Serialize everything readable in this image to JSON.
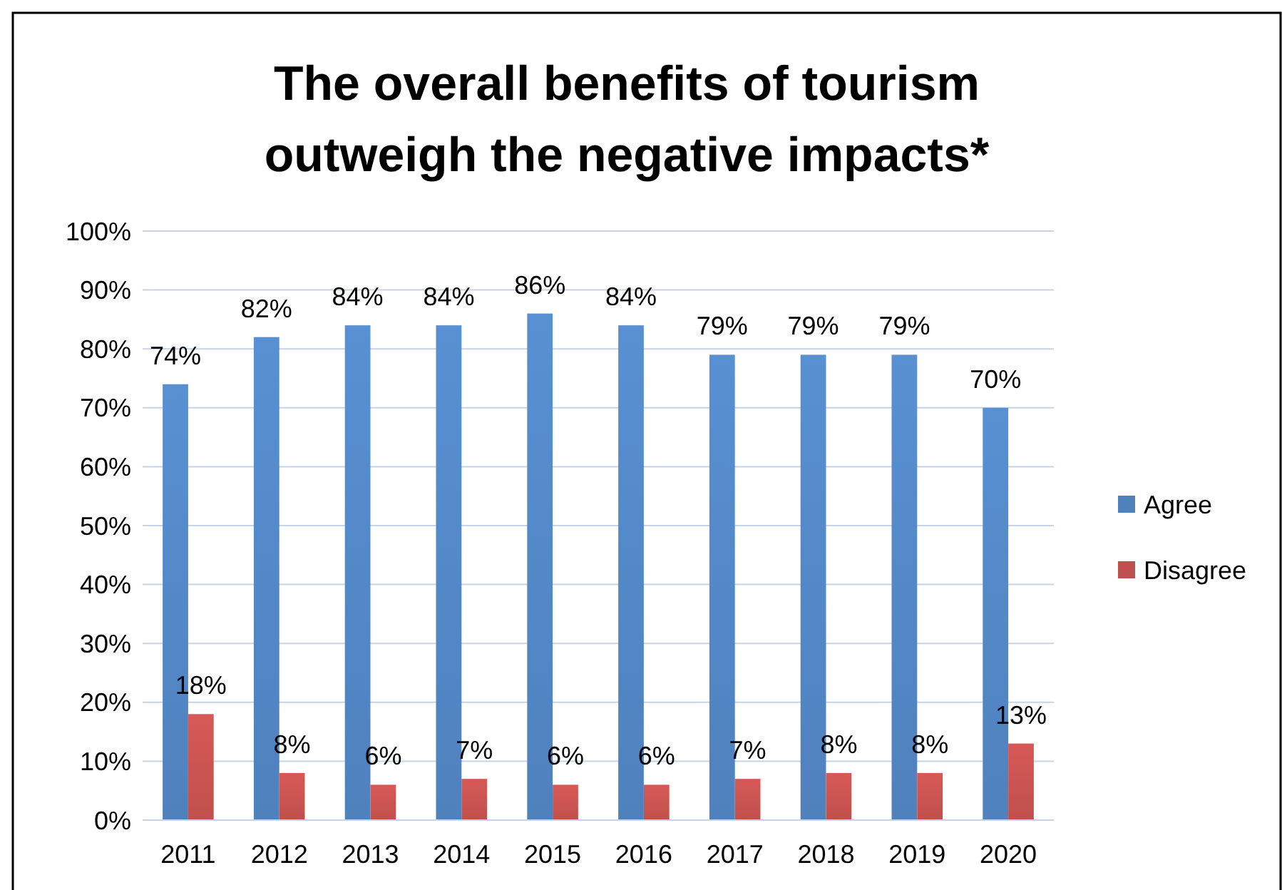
{
  "chart_data": {
    "type": "bar",
    "title": "The overall benefits of tourism outweigh the negative impacts*",
    "categories": [
      "2011",
      "2012",
      "2013",
      "2014",
      "2015",
      "2016",
      "2017",
      "2018",
      "2019",
      "2020"
    ],
    "series": [
      {
        "name": "Agree",
        "color": "#4f81bd",
        "values": [
          74,
          82,
          84,
          84,
          86,
          84,
          79,
          79,
          79,
          70
        ],
        "value_labels": [
          "74%",
          "82%",
          "84%",
          "84%",
          "86%",
          "84%",
          "79%",
          "79%",
          "79%",
          "70%"
        ]
      },
      {
        "name": "Disagree",
        "color": "#c0504d",
        "values": [
          18,
          8,
          6,
          7,
          6,
          6,
          7,
          8,
          8,
          13
        ],
        "value_labels": [
          "18%",
          "8%",
          "6%",
          "7%",
          "6%",
          "6%",
          "7%",
          "8%",
          "8%",
          "13%"
        ]
      }
    ],
    "ylim": [
      0,
      100
    ],
    "yticks": [
      {
        "value": 0,
        "label": "0%"
      },
      {
        "value": 10,
        "label": "10%"
      },
      {
        "value": 20,
        "label": "20%"
      },
      {
        "value": 30,
        "label": "30%"
      },
      {
        "value": 40,
        "label": "40%"
      },
      {
        "value": 50,
        "label": "50%"
      },
      {
        "value": 60,
        "label": "60%"
      },
      {
        "value": 70,
        "label": "70%"
      },
      {
        "value": 80,
        "label": "80%"
      },
      {
        "value": 90,
        "label": "90%"
      },
      {
        "value": 100,
        "label": "100%"
      }
    ],
    "grid": "y",
    "legend": "right"
  }
}
